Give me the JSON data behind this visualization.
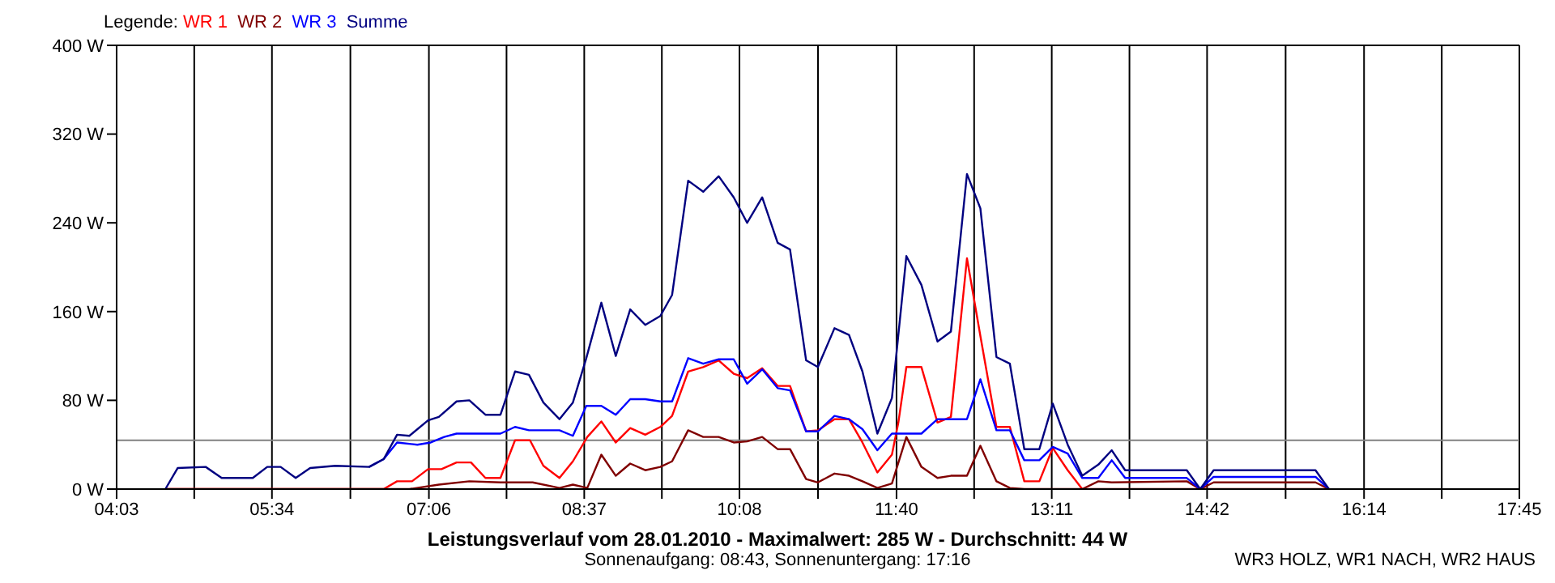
{
  "chart_data": {
    "type": "line",
    "title": "Leistungsverlauf vom 28.01.2010 - Maximalwert: 285 W - Durchschnitt: 44 W",
    "subtitle": "Sonnenaufgang: 08:43, Sonnenuntergang: 17:16",
    "legend_title": "Legende:",
    "legend": "top left",
    "grid": true,
    "annotations": [
      "WR3 HOLZ, WR1 NACH, WR2 HAUS"
    ],
    "xlim": [
      4.05,
      17.75
    ],
    "xticks": [
      {
        "value": 4.05,
        "label": "04:03"
      },
      {
        "value": 4.808,
        "label": null
      },
      {
        "value": 5.567,
        "label": "05:34"
      },
      {
        "value": 6.333,
        "label": null
      },
      {
        "value": 7.1,
        "label": "07:06"
      },
      {
        "value": 7.858,
        "label": null
      },
      {
        "value": 8.617,
        "label": "08:37"
      },
      {
        "value": 9.375,
        "label": null
      },
      {
        "value": 10.133,
        "label": "10:08"
      },
      {
        "value": 10.9,
        "label": null
      },
      {
        "value": 11.667,
        "label": "11:40"
      },
      {
        "value": 12.425,
        "label": null
      },
      {
        "value": 13.183,
        "label": "13:11"
      },
      {
        "value": 13.942,
        "label": null
      },
      {
        "value": 14.7,
        "label": "14:42"
      },
      {
        "value": 15.467,
        "label": null
      },
      {
        "value": 16.233,
        "label": "16:14"
      },
      {
        "value": 16.992,
        "label": null
      },
      {
        "value": 17.75,
        "label": "17:45"
      }
    ],
    "ylim": [
      0,
      400
    ],
    "yticks": [
      {
        "value": 0,
        "label": "0 W"
      },
      {
        "value": 80,
        "label": "80 W"
      },
      {
        "value": 160,
        "label": "160 W"
      },
      {
        "value": 240,
        "label": "240 W"
      },
      {
        "value": 320,
        "label": "320 W"
      },
      {
        "value": 400,
        "label": "400 W"
      }
    ],
    "ref_lines": [
      {
        "axis": "y",
        "value": 44,
        "color": "#808080"
      }
    ],
    "series": [
      {
        "name": "WR 1",
        "color": "#ff0000",
        "x": [
          4.526,
          6.658,
          6.789,
          6.935,
          7.092,
          7.223,
          7.37,
          7.511,
          7.652,
          7.799,
          7.941,
          8.087,
          8.218,
          8.375,
          8.506,
          8.647,
          8.784,
          8.925,
          9.066,
          9.213,
          9.36,
          9.475,
          9.632,
          9.779,
          9.93,
          10.077,
          10.208,
          10.355,
          10.506,
          10.627,
          10.784,
          10.899,
          11.061,
          11.203,
          11.334,
          11.48,
          11.622,
          11.685,
          11.763,
          11.91,
          12.067,
          12.198,
          12.355,
          12.486,
          12.643,
          12.774,
          12.915,
          13.062,
          13.193,
          13.339,
          13.481,
          15.89
        ],
        "values": [
          0,
          0,
          7,
          7,
          18,
          18,
          24,
          24,
          10,
          10,
          44,
          44,
          21,
          10,
          25,
          47,
          61,
          42,
          55,
          49,
          56,
          66,
          106,
          110,
          116,
          104,
          100,
          109,
          93,
          93,
          52,
          53,
          63,
          63,
          42,
          15,
          31,
          60,
          110,
          110,
          60,
          65,
          208,
          138,
          56,
          56,
          7,
          7,
          37,
          17,
          0,
          0
        ]
      },
      {
        "name": "WR 2",
        "color": "#800000",
        "x": [
          4.526,
          6.909,
          7.197,
          7.495,
          7.799,
          8.113,
          8.375,
          8.506,
          8.647,
          8.784,
          8.925,
          9.066,
          9.213,
          9.36,
          9.475,
          9.632,
          9.779,
          9.93,
          10.077,
          10.208,
          10.355,
          10.506,
          10.627,
          10.784,
          10.899,
          11.061,
          11.203,
          11.334,
          11.48,
          11.622,
          11.763,
          11.91,
          12.067,
          12.198,
          12.355,
          12.486,
          12.643,
          12.774,
          12.915,
          13.481,
          13.638,
          13.769,
          14.502,
          14.633,
          14.764,
          15.549,
          15.759,
          15.89
        ],
        "values": [
          0,
          0,
          4,
          7,
          6,
          6,
          1,
          4,
          1,
          31,
          12,
          23,
          17,
          20,
          25,
          53,
          47,
          47,
          42,
          43,
          47,
          36,
          36,
          9,
          6,
          14,
          12,
          7,
          1,
          5,
          47,
          20,
          10,
          12,
          12,
          39,
          7,
          1,
          0,
          0,
          7,
          6,
          7,
          0,
          6,
          6,
          6,
          0
        ]
      },
      {
        "name": "WR 3",
        "color": "#0000ff",
        "x": [
          6.516,
          6.658,
          6.789,
          6.987,
          7.118,
          7.249,
          7.37,
          7.799,
          7.941,
          8.077,
          8.375,
          8.506,
          8.637,
          8.784,
          8.925,
          9.066,
          9.213,
          9.36,
          9.475,
          9.632,
          9.779,
          9.93,
          10.077,
          10.208,
          10.355,
          10.506,
          10.627,
          10.784,
          10.899,
          11.061,
          11.203,
          11.334,
          11.48,
          11.622,
          11.763,
          11.91,
          12.067,
          12.198,
          12.355,
          12.486,
          12.643,
          12.774,
          12.915,
          13.062,
          13.193,
          13.339,
          13.481,
          13.638,
          13.769,
          13.9,
          14.502,
          14.633,
          14.764,
          15.549,
          15.759,
          15.89
        ],
        "values": [
          20,
          27,
          42,
          40,
          42,
          47,
          50,
          50,
          56,
          53,
          53,
          48,
          75,
          75,
          67,
          81,
          81,
          79,
          79,
          118,
          113,
          117,
          117,
          95,
          108,
          91,
          89,
          52,
          52,
          66,
          63,
          54,
          35,
          50,
          50,
          50,
          63,
          63,
          63,
          99,
          53,
          53,
          26,
          26,
          38,
          32,
          10,
          10,
          26,
          10,
          10,
          0,
          11,
          11,
          11,
          0
        ]
      },
      {
        "name": "Summe",
        "color": "#000080",
        "x": [
          4.526,
          4.647,
          4.919,
          5.076,
          5.38,
          5.521,
          5.652,
          5.799,
          5.94,
          6.186,
          6.516,
          6.658,
          6.789,
          6.909,
          7.092,
          7.197,
          7.37,
          7.495,
          7.652,
          7.799,
          7.941,
          8.077,
          8.218,
          8.375,
          8.506,
          8.637,
          8.784,
          8.925,
          9.066,
          9.213,
          9.36,
          9.475,
          9.632,
          9.779,
          9.93,
          10.077,
          10.208,
          10.355,
          10.506,
          10.627,
          10.784,
          10.899,
          11.061,
          11.203,
          11.334,
          11.48,
          11.622,
          11.763,
          11.91,
          12.067,
          12.198,
          12.355,
          12.486,
          12.643,
          12.774,
          12.915,
          13.062,
          13.193,
          13.339,
          13.481,
          13.638,
          13.769,
          13.9,
          14.502,
          14.633,
          14.764,
          15.549,
          15.759,
          15.89
        ],
        "values": [
          0,
          19,
          20,
          10,
          10,
          20,
          20,
          10,
          19,
          21,
          20,
          27,
          49,
          48,
          62,
          65,
          79,
          80,
          67,
          67,
          106,
          103,
          78,
          63,
          78,
          118,
          168,
          120,
          162,
          148,
          156,
          175,
          278,
          268,
          282,
          263,
          240,
          263,
          222,
          216,
          116,
          110,
          145,
          139,
          106,
          50,
          82,
          210,
          184,
          133,
          142,
          284,
          253,
          119,
          113,
          36,
          36,
          77,
          40,
          12,
          22,
          35,
          17,
          17,
          0,
          17,
          17,
          17,
          0
        ]
      }
    ]
  }
}
